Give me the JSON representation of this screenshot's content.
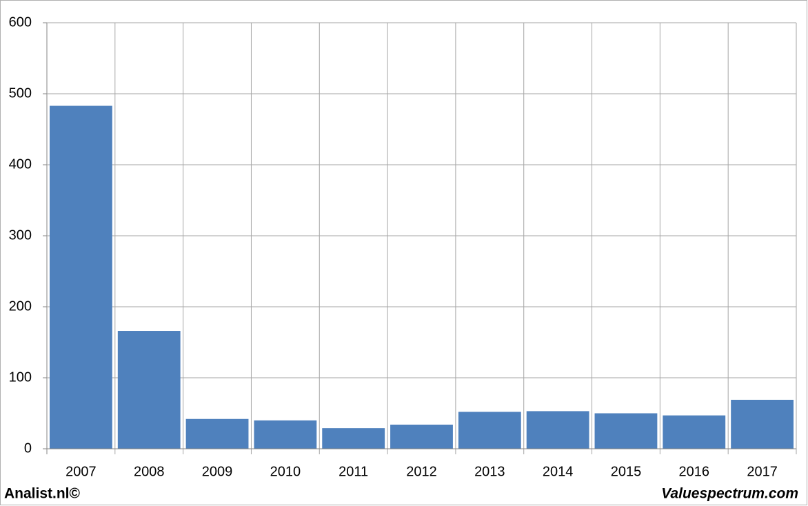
{
  "chart_data": {
    "type": "bar",
    "categories": [
      "2007",
      "2008",
      "2009",
      "2010",
      "2011",
      "2012",
      "2013",
      "2014",
      "2015",
      "2016",
      "2017"
    ],
    "values": [
      483,
      166,
      42,
      40,
      29,
      34,
      52,
      53,
      50,
      47,
      69
    ],
    "color": "#4f81bd",
    "ylim": [
      0,
      600
    ],
    "yticks": [
      0,
      100,
      200,
      300,
      400,
      500,
      600
    ],
    "grid": true
  },
  "footer": {
    "left": "Analist.nl©",
    "right": "Valuespectrum.com"
  }
}
